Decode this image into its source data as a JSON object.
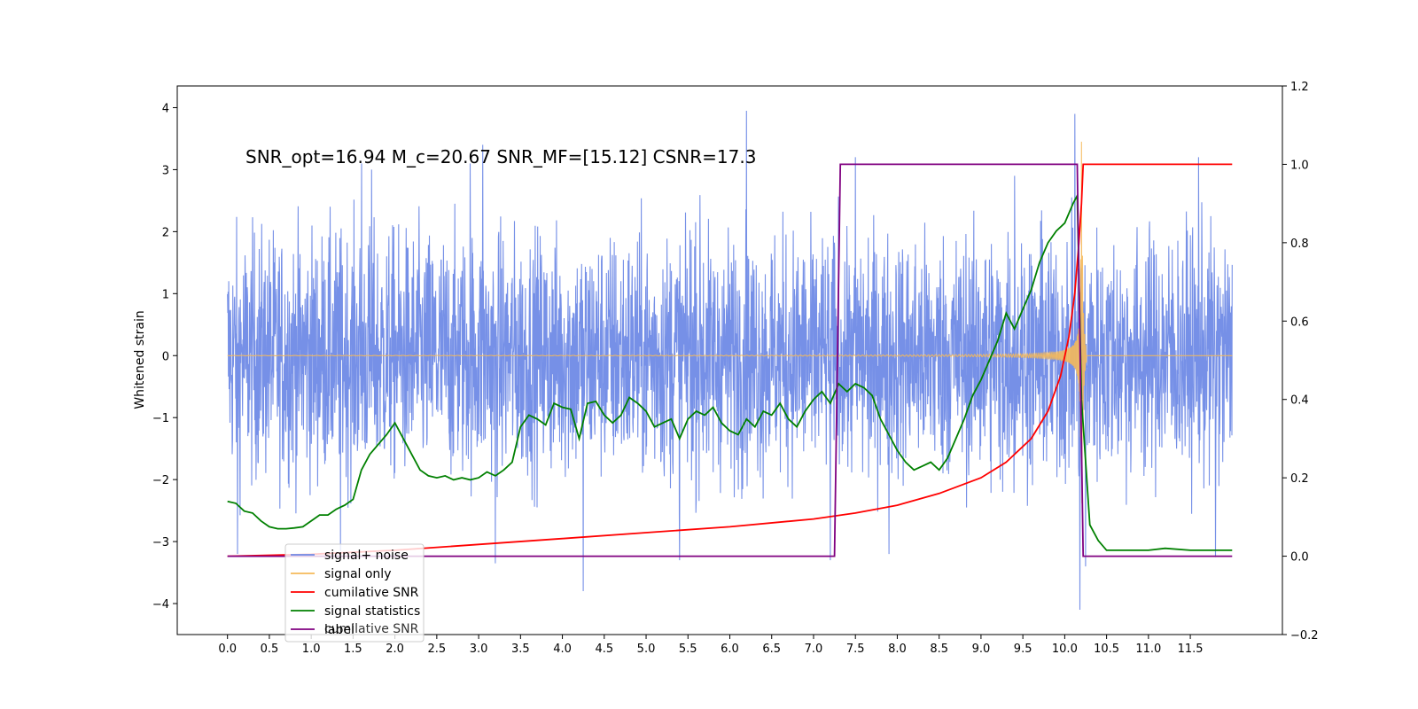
{
  "chart_data": {
    "type": "line",
    "annotation": "SNR_opt=16.94 M_c=20.67  SNR_MF=[15.12] CSNR=17.3",
    "ylabel": "Whitened strain",
    "x_ticks": [
      "0.0",
      "0.5",
      "1.0",
      "1.5",
      "2.0",
      "2.5",
      "3.0",
      "3.5",
      "4.0",
      "4.5",
      "5.0",
      "5.5",
      "6.0",
      "6.5",
      "7.0",
      "7.5",
      "8.0",
      "8.5",
      "9.0",
      "9.5",
      "10.0",
      "10.5",
      "11.0",
      "11.5"
    ],
    "y_left_ticks": [
      "4",
      "3",
      "2",
      "1",
      "0",
      "−1",
      "−2",
      "−3",
      "−4"
    ],
    "y_right_ticks": [
      "1.2",
      "1.0",
      "0.8",
      "0.6",
      "0.4",
      "0.2",
      "0.0",
      "−0.2"
    ],
    "xlim": [
      -0.6,
      12.6
    ],
    "ylim_left": [
      -4.5,
      4.35
    ],
    "ylim_right": [
      -0.2,
      1.2
    ],
    "legend_position": "lower-left",
    "grid": false,
    "legend": [
      {
        "label": "signal+ noise",
        "color": "#6f8ae6"
      },
      {
        "label": "signal only",
        "color": "#f5b95a"
      },
      {
        "label": "cumilative SNR",
        "color": "#ff0000"
      },
      {
        "label": "signal statistics",
        "color": "#008000"
      },
      {
        "label": "label",
        "color": "#800080"
      }
    ],
    "ghost_legend_text": "cumilative SNR",
    "series": [
      {
        "name": "signal+ noise",
        "axis": "left",
        "color": "#6f8ae6",
        "x_start": 0.0,
        "x_end": 12.0,
        "amplitude": 1.6,
        "peaks": [
          [
            1.6,
            3.1
          ],
          [
            1.72,
            3.0
          ],
          [
            2.9,
            3.1
          ],
          [
            3.05,
            3.4
          ],
          [
            6.2,
            3.95
          ],
          [
            7.5,
            3.2
          ],
          [
            9.4,
            2.9
          ],
          [
            10.12,
            3.9
          ],
          [
            10.18,
            -4.1
          ],
          [
            11.6,
            3.2
          ],
          [
            4.25,
            -3.8
          ],
          [
            0.12,
            -3.2
          ],
          [
            1.35,
            -3.15
          ],
          [
            3.2,
            -3.35
          ],
          [
            5.4,
            -3.3
          ],
          [
            7.2,
            -3.3
          ],
          [
            7.9,
            -3.2
          ],
          [
            10.25,
            -3.4
          ],
          [
            11.8,
            -3.25
          ]
        ]
      },
      {
        "name": "signal only",
        "axis": "left",
        "color": "#f5b95a",
        "x_start": 0.0,
        "x_end": 12.0,
        "merger_time": 10.2,
        "peak_amplitude": 3.45
      },
      {
        "name": "cumilative SNR",
        "axis": "right",
        "color": "#ff0000",
        "x": [
          0.0,
          1.0,
          2.0,
          3.0,
          4.0,
          5.0,
          6.0,
          7.0,
          7.5,
          8.0,
          8.5,
          9.0,
          9.3,
          9.6,
          9.8,
          9.95,
          10.05,
          10.12,
          10.17,
          10.2,
          10.22,
          12.0
        ],
        "y": [
          0.0,
          0.005,
          0.015,
          0.03,
          0.045,
          0.06,
          0.075,
          0.095,
          0.11,
          0.13,
          0.16,
          0.2,
          0.24,
          0.3,
          0.37,
          0.46,
          0.56,
          0.67,
          0.8,
          0.9,
          1.0,
          1.0
        ]
      },
      {
        "name": "signal statistics",
        "axis": "right",
        "color": "#008000",
        "x": [
          0.0,
          0.1,
          0.2,
          0.3,
          0.4,
          0.5,
          0.6,
          0.7,
          0.8,
          0.9,
          1.0,
          1.1,
          1.2,
          1.3,
          1.4,
          1.5,
          1.6,
          1.7,
          1.8,
          1.9,
          2.0,
          2.1,
          2.2,
          2.3,
          2.4,
          2.5,
          2.6,
          2.7,
          2.8,
          2.9,
          3.0,
          3.1,
          3.2,
          3.3,
          3.4,
          3.5,
          3.6,
          3.7,
          3.8,
          3.9,
          4.0,
          4.1,
          4.2,
          4.3,
          4.4,
          4.5,
          4.6,
          4.7,
          4.8,
          4.9,
          5.0,
          5.1,
          5.2,
          5.3,
          5.4,
          5.5,
          5.6,
          5.7,
          5.8,
          5.9,
          6.0,
          6.1,
          6.2,
          6.3,
          6.4,
          6.5,
          6.6,
          6.7,
          6.8,
          6.9,
          7.0,
          7.1,
          7.2,
          7.3,
          7.4,
          7.5,
          7.6,
          7.7,
          7.8,
          7.9,
          8.0,
          8.1,
          8.2,
          8.3,
          8.4,
          8.5,
          8.6,
          8.7,
          8.8,
          8.9,
          9.0,
          9.1,
          9.2,
          9.3,
          9.4,
          9.5,
          9.6,
          9.7,
          9.8,
          9.9,
          10.0,
          10.1,
          10.15,
          10.2,
          10.3,
          10.4,
          10.5,
          10.7,
          11.0,
          11.2,
          11.5,
          12.0
        ],
        "y": [
          0.14,
          0.135,
          0.115,
          0.11,
          0.09,
          0.075,
          0.07,
          0.07,
          0.072,
          0.075,
          0.09,
          0.105,
          0.105,
          0.12,
          0.13,
          0.145,
          0.22,
          0.26,
          0.285,
          0.31,
          0.34,
          0.3,
          0.26,
          0.22,
          0.205,
          0.2,
          0.205,
          0.195,
          0.2,
          0.195,
          0.2,
          0.215,
          0.205,
          0.22,
          0.24,
          0.33,
          0.36,
          0.35,
          0.335,
          0.39,
          0.38,
          0.375,
          0.3,
          0.39,
          0.395,
          0.36,
          0.34,
          0.36,
          0.405,
          0.39,
          0.37,
          0.33,
          0.34,
          0.35,
          0.3,
          0.35,
          0.37,
          0.36,
          0.38,
          0.34,
          0.32,
          0.31,
          0.35,
          0.33,
          0.37,
          0.36,
          0.39,
          0.35,
          0.33,
          0.37,
          0.4,
          0.42,
          0.39,
          0.44,
          0.42,
          0.44,
          0.43,
          0.41,
          0.35,
          0.31,
          0.27,
          0.24,
          0.22,
          0.23,
          0.24,
          0.22,
          0.25,
          0.3,
          0.35,
          0.41,
          0.45,
          0.5,
          0.55,
          0.62,
          0.58,
          0.63,
          0.68,
          0.75,
          0.8,
          0.83,
          0.85,
          0.9,
          0.92,
          0.4,
          0.08,
          0.04,
          0.015,
          0.015,
          0.015,
          0.02,
          0.015,
          0.015
        ]
      },
      {
        "name": "label",
        "axis": "right",
        "color": "#800080",
        "x": [
          0.0,
          7.25,
          7.32,
          10.15,
          10.22,
          12.0
        ],
        "y": [
          0.0,
          0.0,
          1.0,
          1.0,
          0.0,
          0.0
        ]
      }
    ]
  }
}
